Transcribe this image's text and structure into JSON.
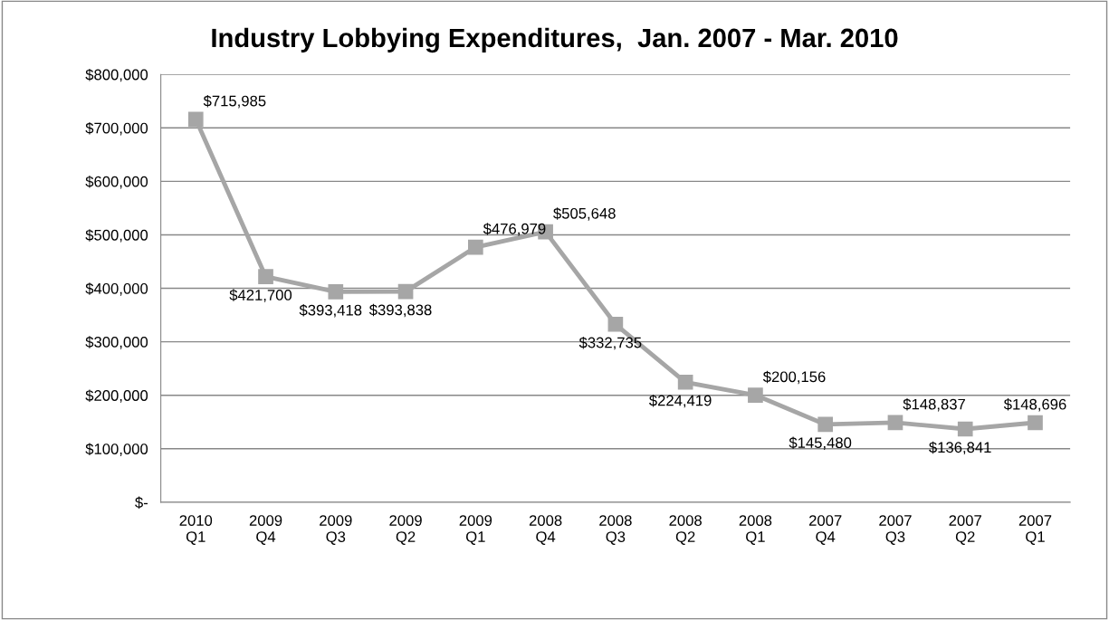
{
  "chart_data": {
    "type": "line",
    "title": "Industry Lobbying Expenditures,  Jan. 2007 - Mar. 2010",
    "categories": [
      "2010\nQ1",
      "2009\nQ4",
      "2009\nQ3",
      "2009\nQ2",
      "2009\nQ1",
      "2008\nQ4",
      "2008\nQ3",
      "2008\nQ2",
      "2008\nQ1",
      "2007\nQ4",
      "2007\nQ3",
      "2007\nQ2",
      "2007\nQ1"
    ],
    "series": [
      {
        "color": "#a6a6a6",
        "values": [
          715985,
          421700,
          393418,
          393838,
          476979,
          505648,
          332735,
          224419,
          200156,
          145480,
          148837,
          136841,
          148696
        ],
        "value_labels": [
          "$715,985",
          "$421,700",
          "$393,418",
          "$393,838",
          "$476,979",
          "$505,648",
          "$332,735",
          "$224,419",
          "$200,156",
          "$145,480",
          "$148,837",
          "$136,841",
          "$148,696"
        ]
      }
    ],
    "ylim": [
      0,
      800000
    ],
    "yticks": [
      {
        "value": 0,
        "label": "$-"
      },
      {
        "value": 100000,
        "label": "$100,000"
      },
      {
        "value": 200000,
        "label": "$200,000"
      },
      {
        "value": 300000,
        "label": "$300,000"
      },
      {
        "value": 400000,
        "label": "$400,000"
      },
      {
        "value": 500000,
        "label": "$500,000"
      },
      {
        "value": 600000,
        "label": "$600,000"
      },
      {
        "value": 700000,
        "label": "$700,000"
      },
      {
        "value": 800000,
        "label": "$800,000"
      }
    ],
    "grid": "y",
    "marker": "square",
    "line_style": "solid",
    "legend": false
  }
}
